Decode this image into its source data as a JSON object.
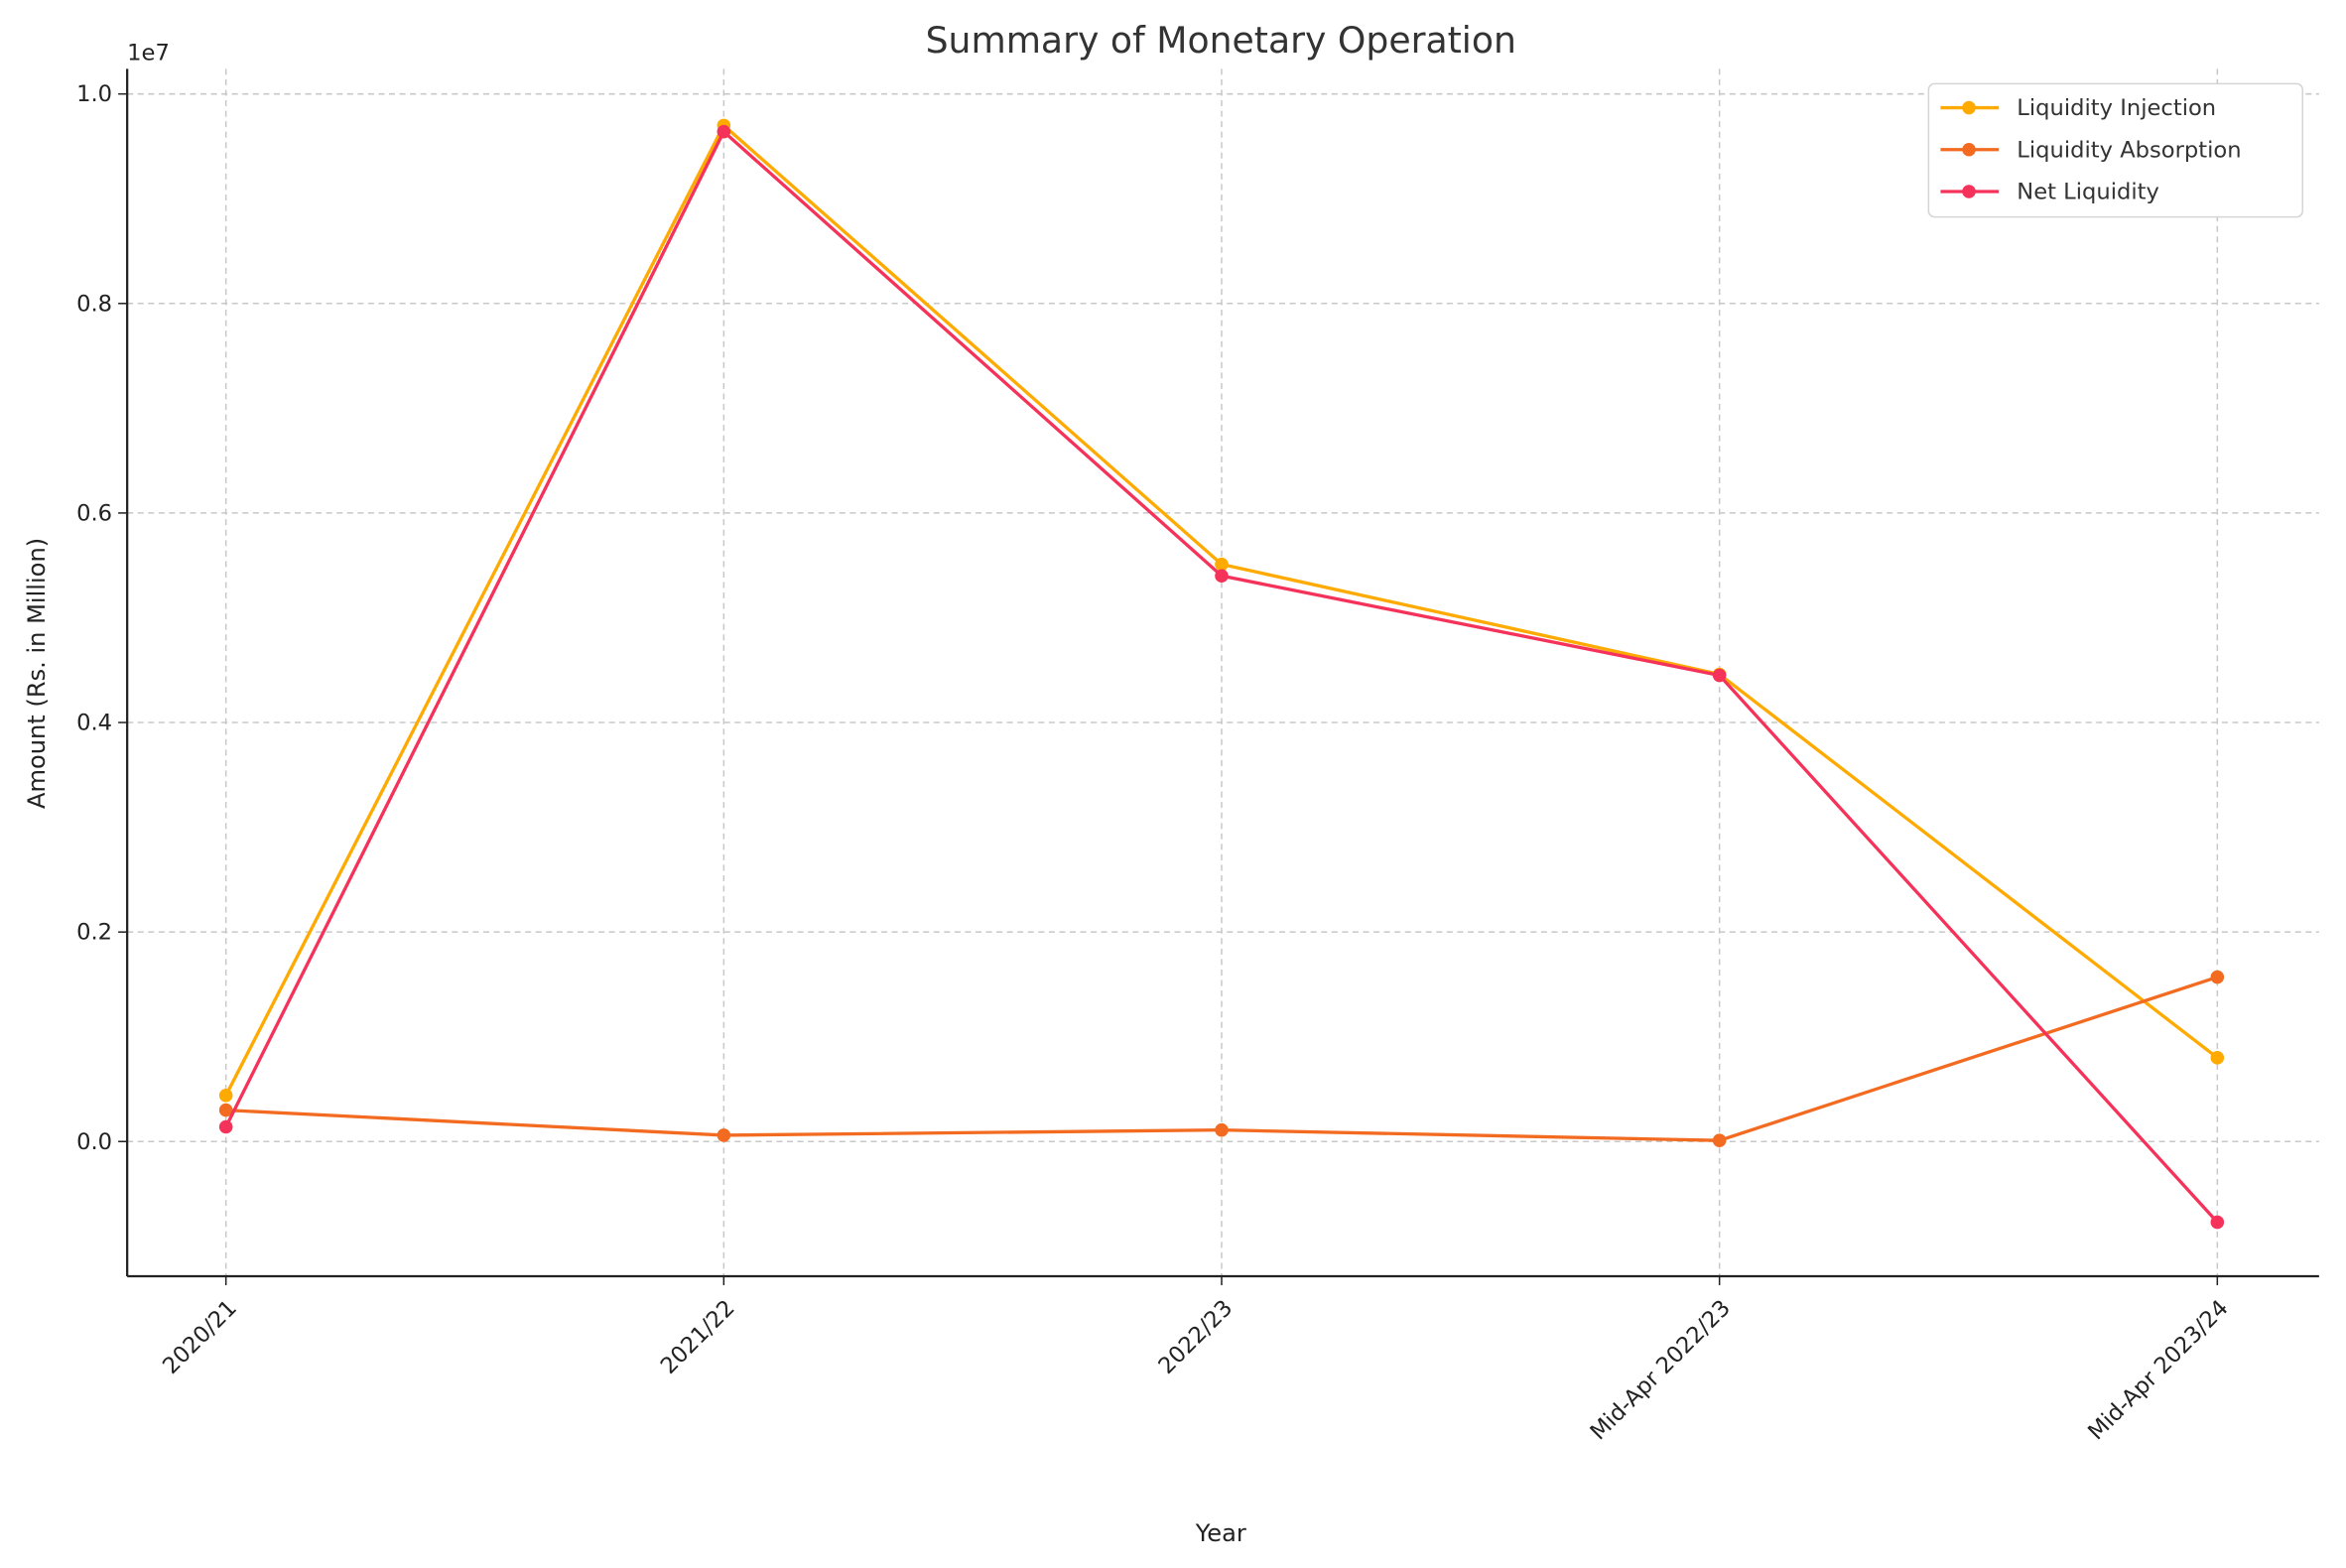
{
  "chart_data": {
    "type": "line",
    "title": "Summary of Monetary Operation",
    "xlabel": "Year",
    "ylabel": "Amount (Rs. in Million)",
    "y_offset_label": "1e7",
    "categories": [
      "2020/21",
      "2021/22",
      "2022/23",
      "Mid-Apr 2022/23",
      "Mid-Apr 2023/24"
    ],
    "ylim": [
      -1286000,
      10240000
    ],
    "yticks": [
      0,
      2000000,
      4000000,
      6000000,
      8000000,
      10000000
    ],
    "ytick_labels": [
      "0.0",
      "0.2",
      "0.4",
      "0.6",
      "0.8",
      "1.0"
    ],
    "grid": true,
    "legend_position": "top-right",
    "series": [
      {
        "name": "Liquidity Injection",
        "color": "#FFAA00",
        "values": [
          440000,
          9700000,
          5510000,
          4460000,
          800000
        ]
      },
      {
        "name": "Liquidity Absorption",
        "color": "#F36B21",
        "values": [
          300000,
          60000,
          110000,
          10000,
          1570000
        ]
      },
      {
        "name": "Net Liquidity",
        "color": "#F5325A",
        "values": [
          140000,
          9640000,
          5400000,
          4450000,
          -770000
        ]
      }
    ]
  }
}
